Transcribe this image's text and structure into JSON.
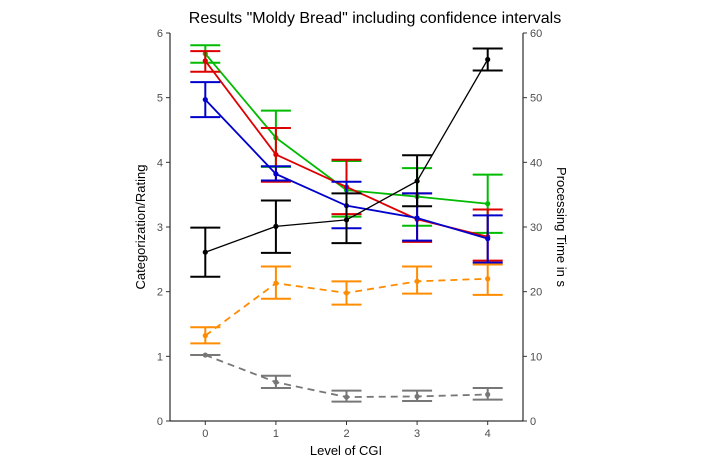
{
  "chart_data": {
    "type": "line",
    "title": "Results \"Moldy Bread\" including confidence intervals",
    "xlabel": "Level of CGI",
    "ylabel_left": "Categorization/Rating",
    "ylabel_right": "Processing Time in s",
    "x": [
      0,
      1,
      2,
      3,
      4
    ],
    "xlim": [
      -0.5,
      4.5
    ],
    "ylim_left": [
      0,
      6
    ],
    "ylim_right": [
      0,
      60
    ],
    "yticks_left": [
      0,
      1,
      2,
      3,
      4,
      5,
      6
    ],
    "yticks_right": [
      0,
      10,
      20,
      30,
      40,
      50,
      60
    ],
    "grid": false,
    "series": [
      {
        "axis": "left",
        "color": "#00BB00",
        "dash": "solid",
        "values": [
          5.68,
          4.38,
          3.57,
          3.47,
          3.36
        ],
        "lower": [
          5.54,
          3.93,
          3.16,
          3.02,
          2.91
        ],
        "upper": [
          5.81,
          4.8,
          4.02,
          3.91,
          3.81
        ]
      },
      {
        "axis": "left",
        "color": "#DD0000",
        "dash": "solid",
        "values": [
          5.57,
          4.12,
          3.62,
          3.12,
          2.85
        ],
        "lower": [
          5.4,
          3.7,
          3.2,
          2.77,
          2.48
        ],
        "upper": [
          5.72,
          4.53,
          4.04,
          3.52,
          3.27
        ]
      },
      {
        "axis": "left",
        "color": "#0000CC",
        "dash": "solid",
        "values": [
          4.97,
          3.82,
          3.33,
          3.14,
          2.82
        ],
        "lower": [
          4.7,
          3.72,
          2.98,
          2.79,
          2.45
        ],
        "upper": [
          5.24,
          3.94,
          3.7,
          3.52,
          3.18
        ]
      },
      {
        "axis": "right",
        "color": "#000000",
        "dash": "solid",
        "values": [
          26.1,
          30.1,
          31.1,
          37.1,
          55.9
        ],
        "lower": [
          22.3,
          26.0,
          27.5,
          33.2,
          54.2
        ],
        "upper": [
          29.9,
          34.1,
          35.2,
          41.1,
          57.6
        ]
      },
      {
        "axis": "left",
        "color": "#FF8C00",
        "dash": "dashed",
        "values": [
          1.32,
          2.13,
          1.98,
          2.16,
          2.2
        ],
        "lower": [
          1.2,
          1.89,
          1.8,
          1.97,
          1.95
        ],
        "upper": [
          1.45,
          2.39,
          2.16,
          2.39,
          2.42
        ]
      },
      {
        "axis": "left",
        "color": "#777777",
        "dash": "dashed",
        "values": [
          1.02,
          0.6,
          0.37,
          0.38,
          0.41
        ],
        "lower": [
          1.02,
          0.51,
          0.3,
          0.31,
          0.33
        ],
        "upper": [
          1.02,
          0.7,
          0.47,
          0.47,
          0.51
        ]
      }
    ]
  }
}
